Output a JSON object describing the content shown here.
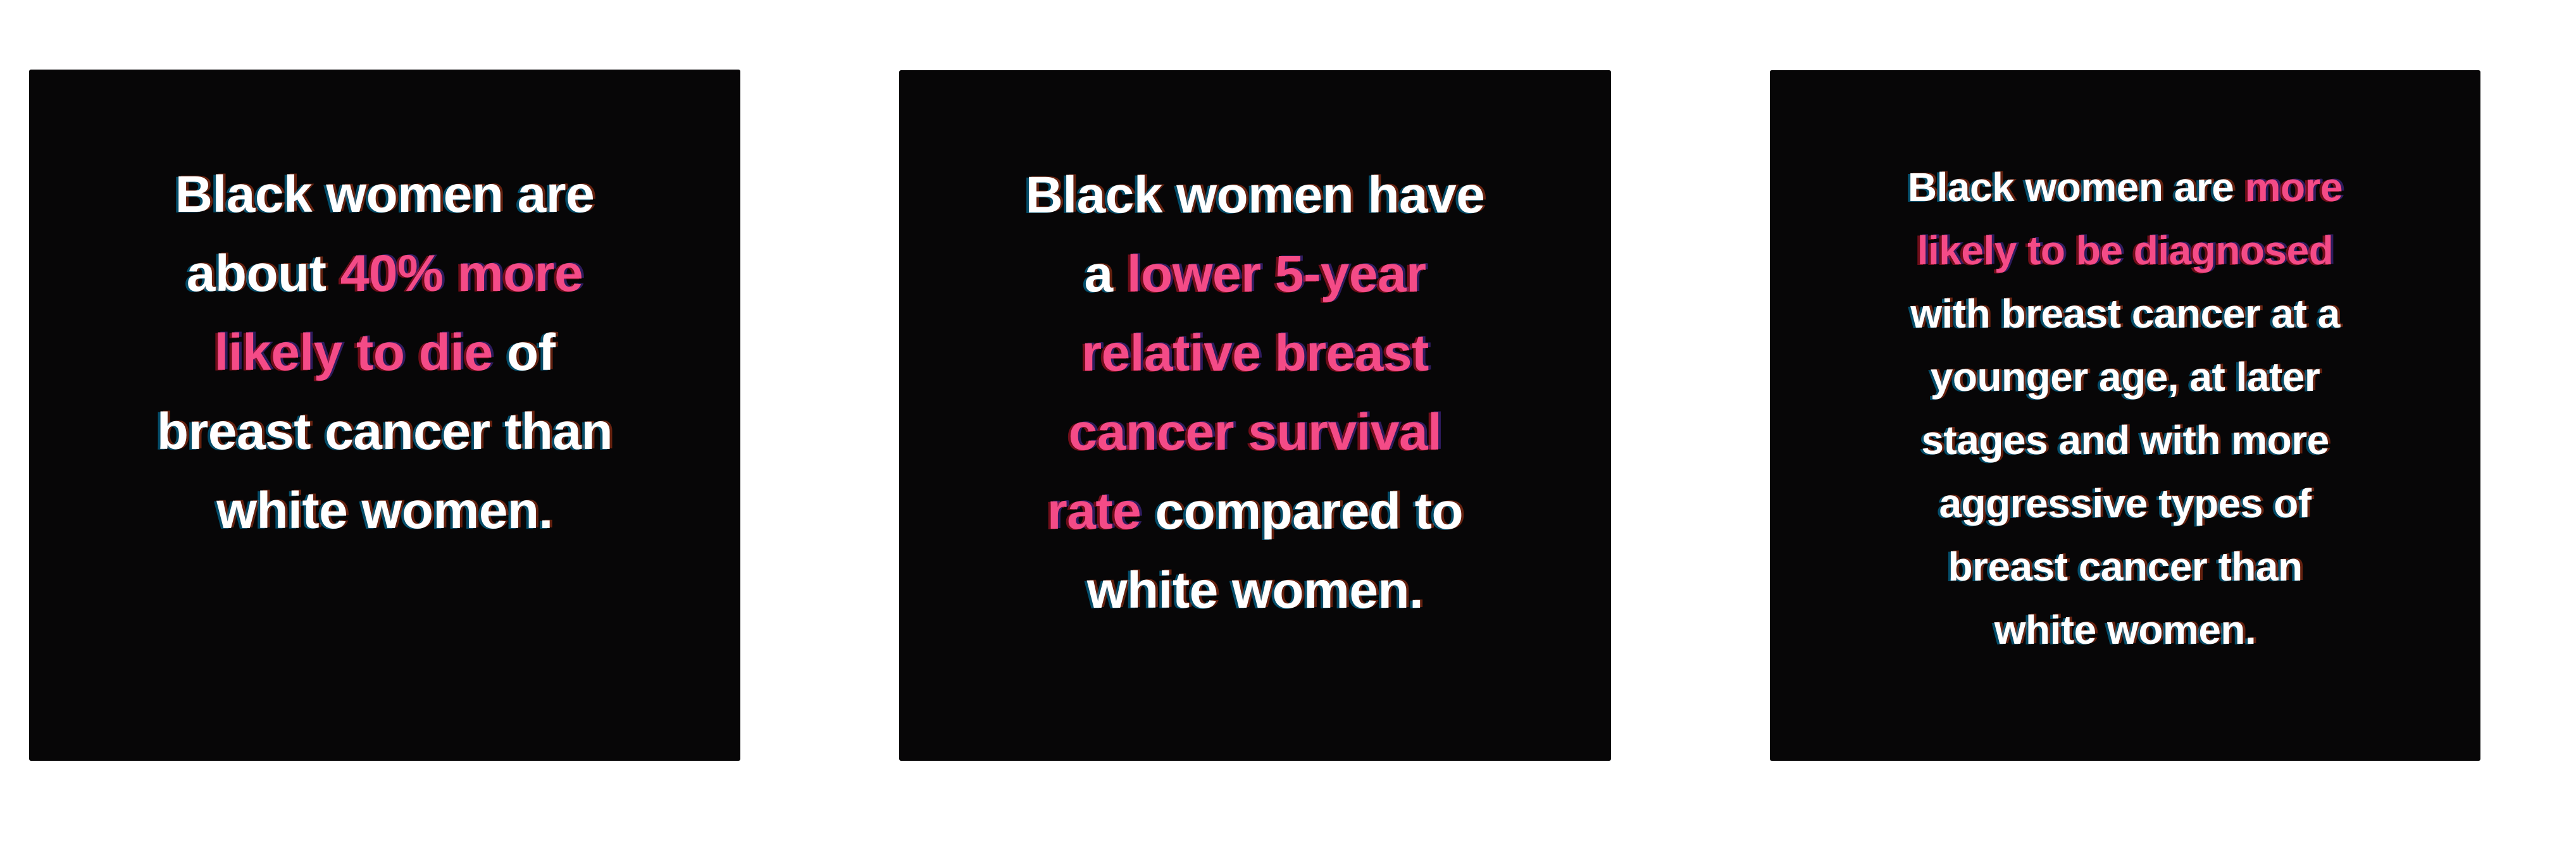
{
  "colors": {
    "highlight_pink": "#f44b87",
    "body_text": "#ffffff",
    "card_background": "#070607",
    "page_background": "#ffffff"
  },
  "cards": [
    {
      "id": "mortality-stat",
      "lines": [
        [
          {
            "t": "Black women are",
            "c": "white"
          }
        ],
        [
          {
            "t": "about ",
            "c": "white"
          },
          {
            "t": "40% more",
            "c": "pink"
          }
        ],
        [
          {
            "t": "likely to die",
            "c": "pink"
          },
          {
            "t": " of",
            "c": "white"
          }
        ],
        [
          {
            "t": "breast cancer than",
            "c": "white"
          }
        ],
        [
          {
            "t": "white women.",
            "c": "white"
          }
        ]
      ]
    },
    {
      "id": "survival-rate-stat",
      "lines": [
        [
          {
            "t": "Black women have",
            "c": "white"
          }
        ],
        [
          {
            "t": "a ",
            "c": "white"
          },
          {
            "t": "lower 5-year",
            "c": "pink"
          }
        ],
        [
          {
            "t": "relative breast",
            "c": "pink"
          }
        ],
        [
          {
            "t": "cancer survival",
            "c": "pink"
          }
        ],
        [
          {
            "t": "rate",
            "c": "pink"
          },
          {
            "t": " compared to",
            "c": "white"
          }
        ],
        [
          {
            "t": "white women.",
            "c": "white"
          }
        ]
      ]
    },
    {
      "id": "diagnosis-stat",
      "lines": [
        [
          {
            "t": "Black women are ",
            "c": "white"
          },
          {
            "t": "more",
            "c": "pink"
          }
        ],
        [
          {
            "t": "likely to be diagnosed",
            "c": "pink"
          }
        ],
        [
          {
            "t": "with breast cancer at a",
            "c": "white"
          }
        ],
        [
          {
            "t": "younger age, at later",
            "c": "white"
          }
        ],
        [
          {
            "t": "stages and with more",
            "c": "white"
          }
        ],
        [
          {
            "t": "aggressive types of",
            "c": "white"
          }
        ],
        [
          {
            "t": "breast cancer than",
            "c": "white"
          }
        ],
        [
          {
            "t": "white women.",
            "c": "white"
          }
        ]
      ]
    }
  ]
}
